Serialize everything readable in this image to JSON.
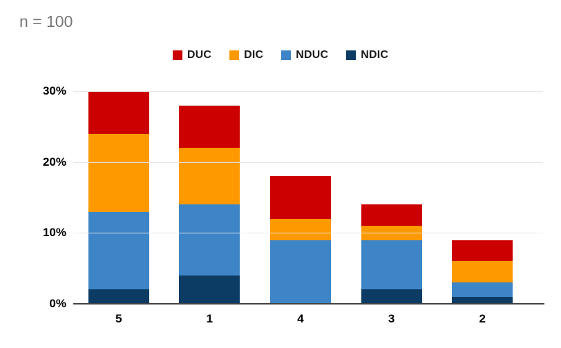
{
  "title": "n = 100",
  "legend": {
    "items": [
      {
        "label": "DUC",
        "color": "#cc0000"
      },
      {
        "label": "DIC",
        "color": "#ff9900"
      },
      {
        "label": "NDUC",
        "color": "#3d85c6"
      },
      {
        "label": "NDIC",
        "color": "#0c3c64"
      }
    ]
  },
  "chart_data": {
    "type": "bar",
    "stacked": true,
    "title": "n = 100",
    "categories": [
      "5",
      "1",
      "4",
      "3",
      "2"
    ],
    "series": [
      {
        "name": "NDIC",
        "color": "#0c3c64",
        "values": [
          2,
          4,
          0,
          2,
          1
        ]
      },
      {
        "name": "NDUC",
        "color": "#3d85c6",
        "values": [
          11,
          10,
          9,
          7,
          2
        ]
      },
      {
        "name": "DIC",
        "color": "#ff9900",
        "values": [
          11,
          8,
          3,
          2,
          3
        ]
      },
      {
        "name": "DUC",
        "color": "#cc0000",
        "values": [
          6,
          6,
          6,
          3,
          3
        ]
      }
    ],
    "stack_order": "bottom-to-top",
    "totals": [
      30,
      28,
      18,
      14,
      9
    ],
    "xlabel": "",
    "ylabel": "",
    "ylim": [
      0,
      30
    ],
    "y_ticks": [
      {
        "value": 0,
        "label": "0%"
      },
      {
        "value": 10,
        "label": "10%"
      },
      {
        "value": 20,
        "label": "20%"
      },
      {
        "value": 30,
        "label": "30%"
      }
    ],
    "grid": true,
    "legend_position": "top",
    "legend_order": [
      "DUC",
      "DIC",
      "NDUC",
      "NDIC"
    ]
  },
  "colors": {
    "title_text": "#757575",
    "axis_line": "#424242",
    "gridline": "#e6e6e6",
    "tick_text": "#000000",
    "background": "#ffffff"
  }
}
